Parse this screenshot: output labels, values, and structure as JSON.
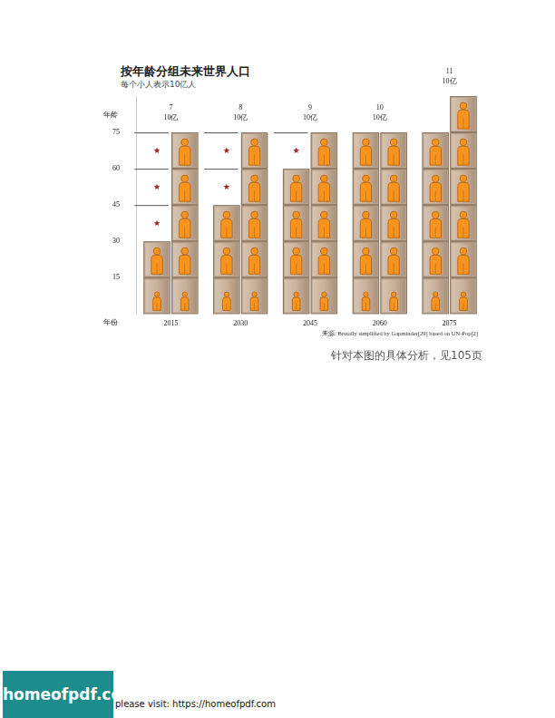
{
  "chart_data": {
    "type": "bar",
    "title": "按年龄分组未来世界人口",
    "subtitle": "每个小人表示10亿人",
    "y_label": "年龄",
    "x_label": "年份",
    "categories": [
      "2015",
      "2030",
      "2045",
      "2060",
      "2075"
    ],
    "age_bins": [
      0,
      15,
      30,
      45,
      60,
      75,
      90
    ],
    "series": [
      {
        "values": [
          2,
          2,
          2,
          2,
          2
        ]
      },
      {
        "values": [
          2,
          2,
          2,
          2,
          2
        ]
      },
      {
        "values": [
          1,
          2,
          2,
          2,
          2
        ]
      },
      {
        "values": [
          1,
          1,
          2,
          2,
          2
        ]
      },
      {
        "values": [
          1,
          1,
          1,
          2,
          2
        ]
      },
      {
        "values": [
          0,
          0,
          0,
          0,
          1
        ]
      }
    ],
    "totals": [
      7,
      8,
      9,
      10,
      11
    ],
    "total_unit": "10亿",
    "ylim": [
      0,
      90
    ],
    "yticks": [
      15,
      30,
      45,
      60,
      75
    ],
    "grid": false,
    "color": "#f7941d",
    "source": "来源: Brutally simplified by Gapminder[29] based on UN-Pop[2]",
    "note": "针对本图的具体分析，见105页"
  },
  "watermark": {
    "logo": "homeofpdf.com",
    "text": "please visit: https://homeofpdf.com"
  }
}
